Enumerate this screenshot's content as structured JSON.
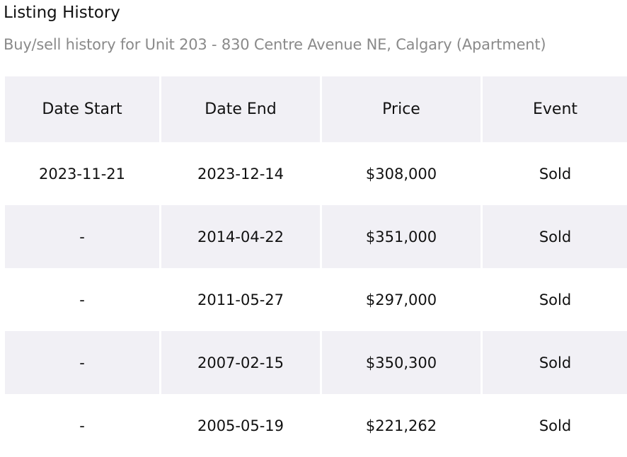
{
  "header": {
    "title": "Listing History",
    "subtitle": "Buy/sell history for Unit 203 - 830 Centre Avenue NE, Calgary (Apartment)"
  },
  "table": {
    "columns": [
      "Date Start",
      "Date End",
      "Price",
      "Event"
    ],
    "rows": [
      [
        "2023-11-21",
        "2023-12-14",
        "$308,000",
        "Sold"
      ],
      [
        "-",
        "2014-04-22",
        "$351,000",
        "Sold"
      ],
      [
        "-",
        "2011-05-27",
        "$297,000",
        "Sold"
      ],
      [
        "-",
        "2007-02-15",
        "$350,300",
        "Sold"
      ],
      [
        "-",
        "2005-05-19",
        "$221,262",
        "Sold"
      ]
    ]
  }
}
